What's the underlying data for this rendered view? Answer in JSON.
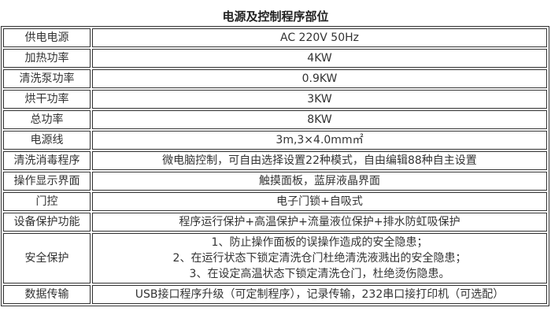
{
  "title": "电源及控制程序部位",
  "colors": {
    "background": "#ffffff",
    "border": "#333333",
    "text": "#333333"
  },
  "table": {
    "rows": [
      {
        "label": "供电电源",
        "value": "AC 220V 50Hz"
      },
      {
        "label": "加热功率",
        "value": "4KW"
      },
      {
        "label": "清洗泵功率",
        "value": "0.9KW"
      },
      {
        "label": "烘干功率",
        "value": "3KW"
      },
      {
        "label": "总功率",
        "value": "8KW"
      },
      {
        "label": "电源线",
        "value": "3m,3×4.0mm㎡"
      },
      {
        "label": "清洗消毒程序",
        "value": "微电脑控制，可自由选择设置22种模式，自由编辑88种自主设置"
      },
      {
        "label": "操作显示界面",
        "value": "触摸面板，蓝屏液晶界面"
      },
      {
        "label": "门控",
        "value": "电子门锁+自吸式"
      },
      {
        "label": "设备保护功能",
        "value": "程序运行保护+高温保护+流量液位保护+排水防虹吸保护"
      },
      {
        "label": "安全保护",
        "lines": [
          "1、防止操作面板的误操作造成的安全隐患；",
          "2、在运行状态下锁定清洗仓门杜绝清洗液溅出的安全隐患；",
          "3、在设定高温状态下锁定清洗仓门，杜绝烫伤隐患。"
        ]
      },
      {
        "label": "数据传输",
        "value": "USB接口程序升级（可定制程序），记录传输，232串口接打印机（可选配）"
      }
    ]
  }
}
